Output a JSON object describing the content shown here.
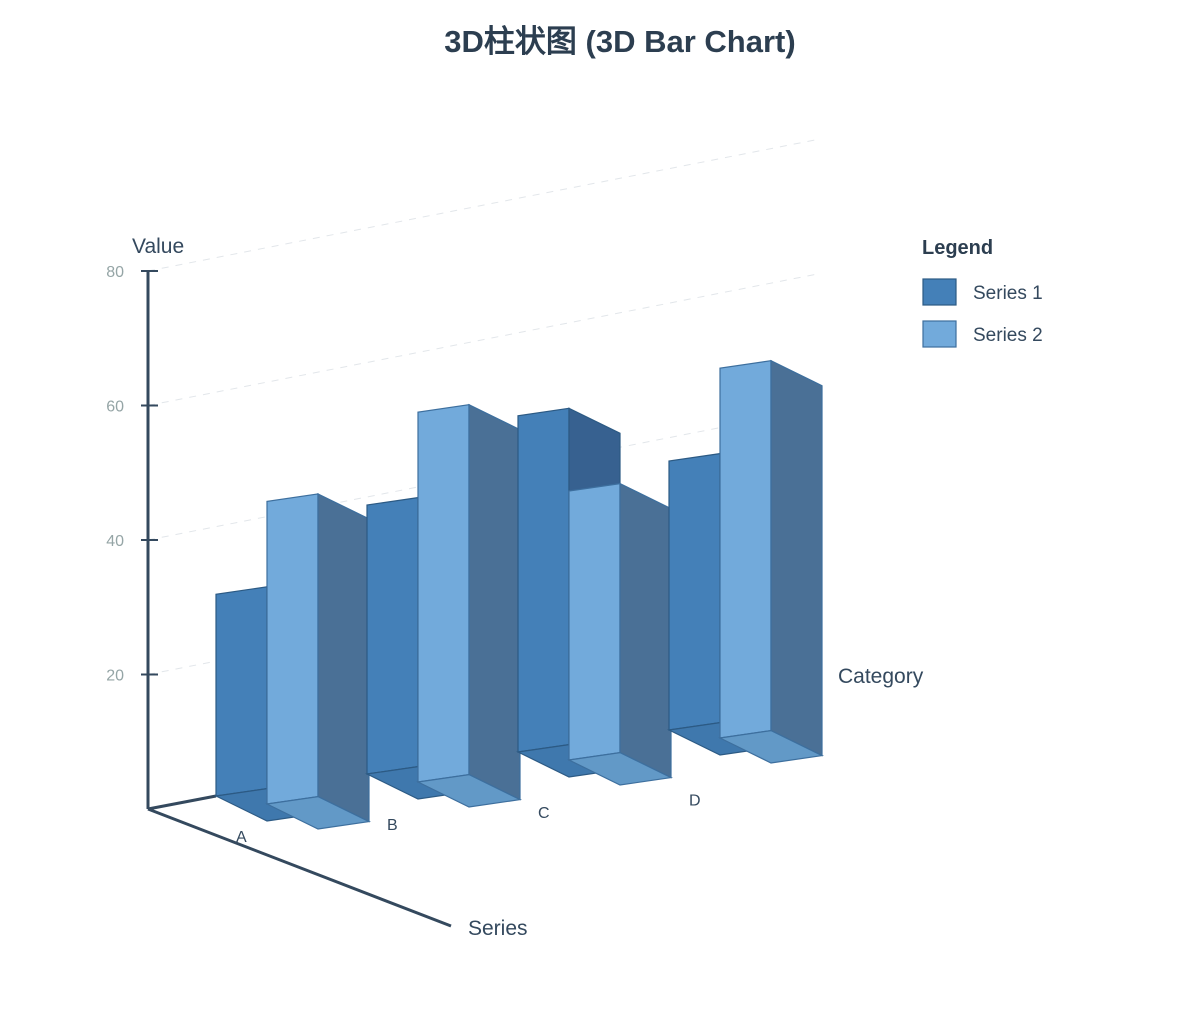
{
  "chart_data": {
    "type": "bar",
    "title": "3D柱状图 (3D Bar Chart)",
    "xlabel": "Category",
    "ylabel": "Value",
    "zlabel": "Series",
    "categories": [
      "A",
      "B",
      "C",
      "D"
    ],
    "series": [
      {
        "name": "Series 1",
        "values": [
          30,
          40,
          50,
          40
        ]
      },
      {
        "name": "Series 2",
        "values": [
          45,
          55,
          40,
          55
        ]
      }
    ],
    "ylim": [
      0,
      80
    ],
    "yticks": [
      20,
      40,
      60,
      80
    ],
    "grid": true,
    "legend_title": "Legend",
    "legend_position": "right",
    "colors": {
      "series1_front": "#4480b8",
      "series1_top": "#3f78ad",
      "series1_side": "#376190",
      "series1_stroke": "#2c5a84",
      "series2_front": "#72aadb",
      "series2_top": "#6299c7",
      "series2_side": "#4a7096",
      "series2_stroke": "#3d6f9e",
      "axis": "#34495e",
      "grid": "#e2e6ea"
    }
  }
}
